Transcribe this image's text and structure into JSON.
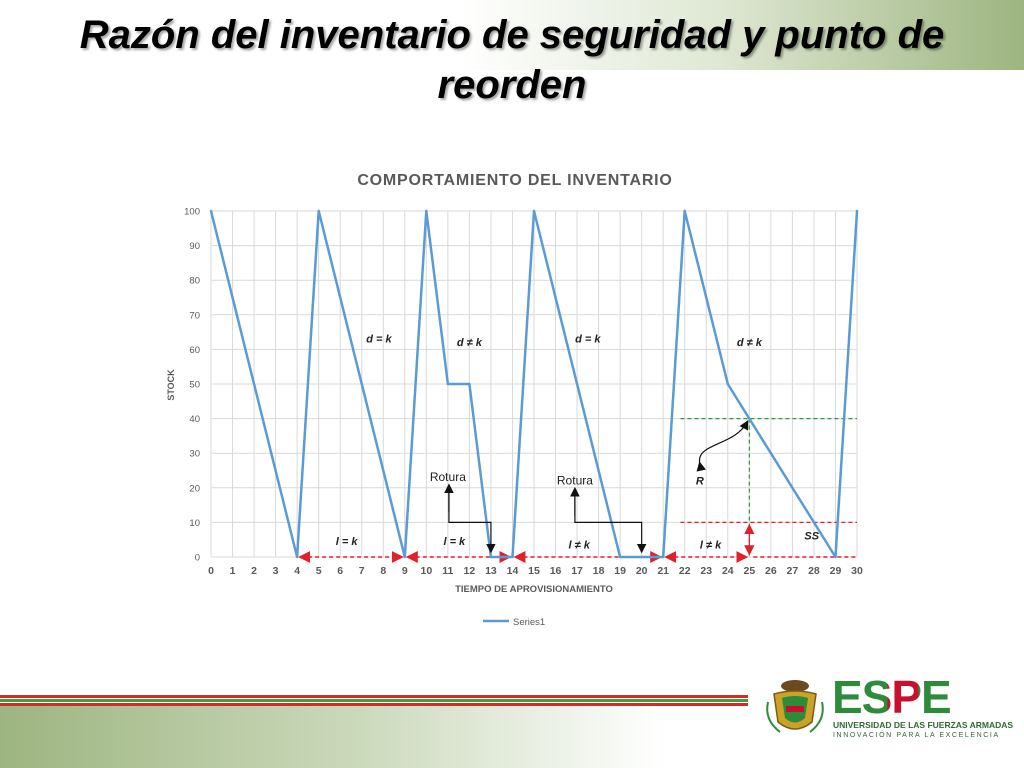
{
  "slide": {
    "title": "Razón del inventario de seguridad y punto de reorden"
  },
  "logo": {
    "name": "ESPE",
    "subtitle": "UNIVERSIDAD DE LAS FUERZAS ARMADAS",
    "tagline": "INNOVACIÓN PARA LA EXCELENCIA",
    "colors": {
      "green": "#2e8b3a",
      "red": "#c8102e",
      "dark_green": "#2f6a2f"
    }
  },
  "colors": {
    "line": "#5b9bd5",
    "grid": "#d9d9d9",
    "reorder_guide": "#2ca02c",
    "safety_guide": "#e0202a",
    "stripe_green": "#4a9a3a",
    "stripe_red": "#d42a2a"
  },
  "chart_data": {
    "type": "line",
    "title": "COMPORTAMIENTO DEL INVENTARIO",
    "xlabel": "TIEMPO DE APROVISIONAMIENTO",
    "ylabel": "STOCK",
    "xlim": [
      0,
      30
    ],
    "ylim": [
      0,
      100
    ],
    "x_ticks": [
      0,
      1,
      2,
      3,
      4,
      5,
      6,
      7,
      8,
      9,
      10,
      11,
      12,
      13,
      14,
      15,
      16,
      17,
      18,
      19,
      20,
      21,
      22,
      23,
      24,
      25,
      26,
      27,
      28,
      29,
      30
    ],
    "y_ticks": [
      0,
      10,
      20,
      30,
      40,
      50,
      60,
      70,
      80,
      90,
      100
    ],
    "grid": true,
    "legend_position": "bottom",
    "series": [
      {
        "name": "Series1",
        "x": [
          0,
          4,
          5,
          9,
          10,
          11,
          12,
          13,
          14,
          15,
          19,
          20,
          21,
          22,
          24,
          25,
          29,
          30
        ],
        "values": [
          100,
          0,
          100,
          0,
          100,
          50,
          50,
          0,
          0,
          100,
          0,
          0,
          0,
          100,
          50,
          40,
          0,
          100
        ]
      }
    ],
    "annotations": {
      "d_labels": [
        {
          "x": 7.8,
          "y": 62,
          "text": "d = k"
        },
        {
          "x": 12,
          "y": 61,
          "text": "d ≠ k"
        },
        {
          "x": 17.5,
          "y": 62,
          "text": "d = k"
        },
        {
          "x": 25,
          "y": 61,
          "text": "d ≠ k"
        }
      ],
      "l_labels": [
        {
          "x": 6.3,
          "y": 3.5,
          "text": "l = k"
        },
        {
          "x": 11.3,
          "y": 3.5,
          "text": "l = k"
        },
        {
          "x": 17.1,
          "y": 2.5,
          "text": "l ≠ k"
        },
        {
          "x": 23.2,
          "y": 2.5,
          "text": "l ≠ k"
        }
      ],
      "rotura": [
        {
          "text": "Rotura",
          "x": 11.0,
          "y": 22
        },
        {
          "text": "Rotura",
          "x": 16.9,
          "y": 21
        }
      ],
      "reorder_label": {
        "text": "R",
        "x": 22.7,
        "y": 21
      },
      "safety_label": {
        "text": "SS",
        "x": 27.9,
        "y": 5
      },
      "reorder_point": {
        "x": 25,
        "y": 40
      },
      "safety_stock": 10,
      "lead_time_segments": [
        [
          4,
          9
        ],
        [
          9,
          14
        ],
        [
          14,
          21
        ],
        [
          21,
          25
        ]
      ]
    }
  }
}
